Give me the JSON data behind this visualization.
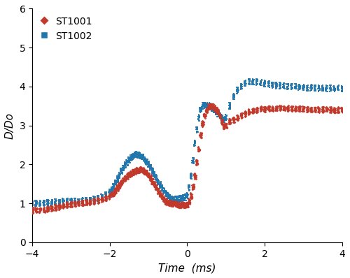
{
  "title": "",
  "xlabel": "Time  (ms)",
  "ylabel": "D/Do",
  "xlim": [
    -4,
    4
  ],
  "ylim": [
    0,
    6
  ],
  "yticks": [
    0,
    1,
    2,
    3,
    4,
    5,
    6
  ],
  "xticks": [
    -4,
    -2,
    0,
    2,
    4
  ],
  "color_st1001": "#C1392B",
  "color_st1002": "#2176AE",
  "legend_labels": [
    "ST1001",
    "ST1002"
  ],
  "st1001_x": [
    -4.0,
    -3.9,
    -3.8,
    -3.7,
    -3.6,
    -3.5,
    -3.4,
    -3.3,
    -3.2,
    -3.1,
    -3.0,
    -2.9,
    -2.8,
    -2.7,
    -2.6,
    -2.5,
    -2.4,
    -2.3,
    -2.2,
    -2.1,
    -2.0,
    -1.95,
    -1.9,
    -1.85,
    -1.8,
    -1.75,
    -1.7,
    -1.65,
    -1.6,
    -1.55,
    -1.5,
    -1.45,
    -1.4,
    -1.35,
    -1.3,
    -1.25,
    -1.2,
    -1.15,
    -1.1,
    -1.05,
    -1.0,
    -0.95,
    -0.9,
    -0.85,
    -0.8,
    -0.75,
    -0.7,
    -0.65,
    -0.6,
    -0.55,
    -0.5,
    -0.45,
    -0.4,
    -0.35,
    -0.3,
    -0.25,
    -0.2,
    -0.15,
    -0.1,
    -0.05,
    0.0,
    0.05,
    0.1,
    0.15,
    0.2,
    0.25,
    0.3,
    0.35,
    0.4,
    0.45,
    0.5,
    0.55,
    0.6,
    0.65,
    0.7,
    0.75,
    0.8,
    0.85,
    0.9,
    0.95,
    1.0,
    1.1,
    1.2,
    1.3,
    1.4,
    1.5,
    1.6,
    1.7,
    1.8,
    1.9,
    2.0,
    2.1,
    2.2,
    2.3,
    2.4,
    2.5,
    2.6,
    2.7,
    2.8,
    2.9,
    3.0,
    3.1,
    3.2,
    3.3,
    3.4,
    3.5,
    3.6,
    3.7,
    3.8,
    3.9,
    4.0
  ],
  "st1001_y": [
    0.82,
    0.82,
    0.83,
    0.84,
    0.85,
    0.87,
    0.89,
    0.91,
    0.93,
    0.96,
    0.98,
    0.99,
    1.0,
    1.01,
    1.02,
    1.03,
    1.05,
    1.07,
    1.1,
    1.14,
    1.18,
    1.22,
    1.27,
    1.33,
    1.4,
    1.47,
    1.54,
    1.6,
    1.65,
    1.7,
    1.74,
    1.77,
    1.8,
    1.83,
    1.85,
    1.86,
    1.87,
    1.85,
    1.82,
    1.78,
    1.72,
    1.65,
    1.57,
    1.49,
    1.4,
    1.32,
    1.24,
    1.17,
    1.1,
    1.05,
    1.02,
    1.01,
    1.0,
    0.99,
    0.98,
    0.97,
    0.96,
    0.96,
    0.96,
    0.96,
    0.97,
    1.05,
    1.2,
    1.42,
    1.7,
    2.05,
    2.4,
    2.75,
    3.05,
    3.25,
    3.4,
    3.48,
    3.5,
    3.48,
    3.45,
    3.4,
    3.35,
    3.25,
    3.1,
    2.98,
    3.0,
    3.1,
    3.15,
    3.2,
    3.25,
    3.3,
    3.35,
    3.38,
    3.4,
    3.42,
    3.43,
    3.44,
    3.44,
    3.44,
    3.44,
    3.44,
    3.44,
    3.44,
    3.43,
    3.43,
    3.43,
    3.42,
    3.42,
    3.42,
    3.41,
    3.41,
    3.41,
    3.4,
    3.4,
    3.4,
    3.4
  ],
  "st1002_x": [
    -4.0,
    -3.9,
    -3.8,
    -3.7,
    -3.6,
    -3.5,
    -3.4,
    -3.3,
    -3.2,
    -3.1,
    -3.0,
    -2.9,
    -2.8,
    -2.7,
    -2.6,
    -2.5,
    -2.4,
    -2.3,
    -2.2,
    -2.1,
    -2.0,
    -1.95,
    -1.9,
    -1.85,
    -1.8,
    -1.75,
    -1.7,
    -1.65,
    -1.6,
    -1.55,
    -1.5,
    -1.45,
    -1.4,
    -1.35,
    -1.3,
    -1.25,
    -1.2,
    -1.15,
    -1.1,
    -1.05,
    -1.0,
    -0.95,
    -0.9,
    -0.85,
    -0.8,
    -0.75,
    -0.7,
    -0.65,
    -0.6,
    -0.55,
    -0.5,
    -0.45,
    -0.4,
    -0.35,
    -0.3,
    -0.25,
    -0.2,
    -0.15,
    -0.1,
    -0.05,
    0.0,
    0.05,
    0.1,
    0.15,
    0.2,
    0.25,
    0.3,
    0.35,
    0.4,
    0.45,
    0.5,
    0.55,
    0.6,
    0.65,
    0.7,
    0.75,
    0.8,
    0.85,
    0.9,
    0.95,
    1.0,
    1.1,
    1.2,
    1.3,
    1.4,
    1.5,
    1.6,
    1.7,
    1.8,
    1.9,
    2.0,
    2.1,
    2.2,
    2.3,
    2.4,
    2.5,
    2.6,
    2.7,
    2.8,
    2.9,
    3.0,
    3.1,
    3.2,
    3.3,
    3.4,
    3.5,
    3.6,
    3.7,
    3.8,
    3.9,
    4.0
  ],
  "st1002_y": [
    1.0,
    1.0,
    1.0,
    1.01,
    1.02,
    1.02,
    1.03,
    1.03,
    1.04,
    1.04,
    1.05,
    1.05,
    1.05,
    1.06,
    1.07,
    1.08,
    1.1,
    1.13,
    1.17,
    1.22,
    1.28,
    1.35,
    1.43,
    1.52,
    1.62,
    1.72,
    1.82,
    1.91,
    1.98,
    2.05,
    2.12,
    2.17,
    2.21,
    2.24,
    2.25,
    2.24,
    2.22,
    2.18,
    2.13,
    2.07,
    2.0,
    1.92,
    1.83,
    1.74,
    1.65,
    1.56,
    1.48,
    1.4,
    1.32,
    1.25,
    1.19,
    1.14,
    1.11,
    1.1,
    1.1,
    1.11,
    1.12,
    1.13,
    1.14,
    1.15,
    1.2,
    1.4,
    1.7,
    2.1,
    2.55,
    2.9,
    3.2,
    3.4,
    3.5,
    3.52,
    3.52,
    3.5,
    3.48,
    3.45,
    3.4,
    3.35,
    3.3,
    3.25,
    3.2,
    3.15,
    3.2,
    3.5,
    3.75,
    3.9,
    4.0,
    4.08,
    4.12,
    4.13,
    4.12,
    4.1,
    4.08,
    4.06,
    4.04,
    4.03,
    4.02,
    4.01,
    4.0,
    4.0,
    4.0,
    3.99,
    3.98,
    3.97,
    3.97,
    3.96,
    3.96,
    3.96,
    3.95,
    3.95,
    3.95,
    3.95,
    3.95
  ]
}
